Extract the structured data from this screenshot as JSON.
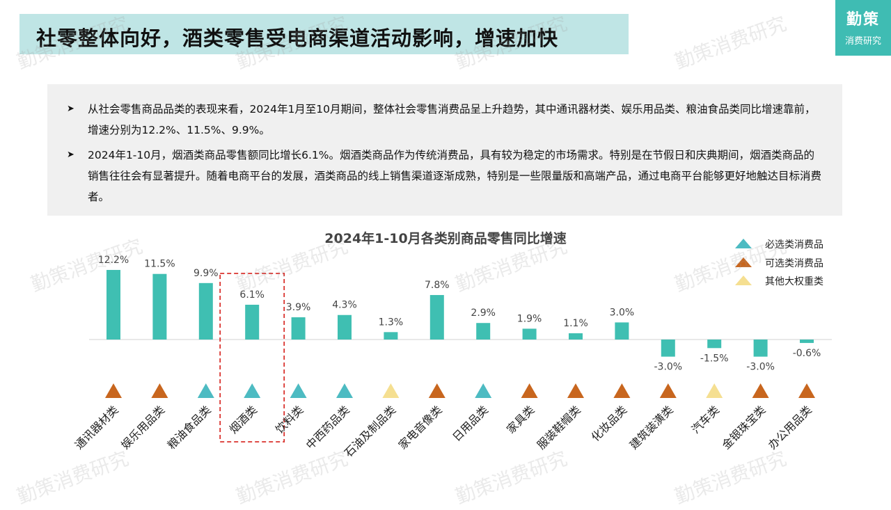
{
  "header": {
    "title": "社零整体向好，酒类零售受电商渠道活动影响，增速加快",
    "brand_main": "勤策",
    "brand_sub": "消费研究"
  },
  "bullets": [
    "从社会零售商品品类的表现来看，2024年1月至10月期间，整体社会零售消费品呈上升趋势，其中通讯器材类、娱乐用品类、粮油食品类同比增速靠前，增速分别为12.2%、11.5%、9.9%。",
    "2024年1-10月，烟酒类商品零售额同比增长6.1%。烟酒类商品作为传统消费品，具有较为稳定的市场需求。特别是在节假日和庆典期间，烟酒类商品的销售往往会有显著提升。随着电商平台的发展，酒类商品的线上销售渠道逐渐成熟，特别是一些限量版和高端产品，通过电商平台能够更好地触达目标消费者。"
  ],
  "watermark": "勤策消费研究",
  "legend": [
    {
      "label": "必选类消费品",
      "color": "#4dbbc2"
    },
    {
      "label": "可选类消费品",
      "color": "#c8661e"
    },
    {
      "label": "其他大权重类",
      "color": "#f5df91"
    }
  ],
  "chart_data": {
    "type": "bar",
    "title": "2024年1-10月各类别商品零售同比增速",
    "categories": [
      "通讯器材类",
      "娱乐用品类",
      "粮油食品类",
      "烟酒类",
      "饮料类",
      "中西药品类",
      "石油及制品类",
      "家电音像类",
      "日用品类",
      "家具类",
      "服装鞋帽类",
      "化妆品类",
      "建筑装潢类",
      "汽车类",
      "金银珠宝类",
      "办公用品类"
    ],
    "values": [
      12.2,
      11.5,
      9.9,
      6.1,
      3.9,
      4.3,
      1.3,
      7.8,
      2.9,
      1.9,
      1.1,
      3.0,
      -3.0,
      -1.5,
      -3.0,
      -0.6
    ],
    "value_labels": [
      "12.2%",
      "11.5%",
      "9.9%",
      "6.1%",
      "3.9%",
      "4.3%",
      "1.3%",
      "7.8%",
      "2.9%",
      "1.9%",
      "1.1%",
      "3.0%",
      "-3.0%",
      "-1.5%",
      "-3.0%",
      "-0.6%"
    ],
    "groups": [
      "可选类消费品",
      "可选类消费品",
      "必选类消费品",
      "必选类消费品",
      "必选类消费品",
      "必选类消费品",
      "其他大权重类",
      "可选类消费品",
      "必选类消费品",
      "可选类消费品",
      "可选类消费品",
      "可选类消费品",
      "可选类消费品",
      "其他大权重类",
      "可选类消费品",
      "可选类消费品"
    ],
    "highlight_category": "烟酒类",
    "bar_color": "#3fbfb2",
    "ylim": [
      -3.5,
      13
    ],
    "grid": false,
    "legend_position": "top-right"
  }
}
